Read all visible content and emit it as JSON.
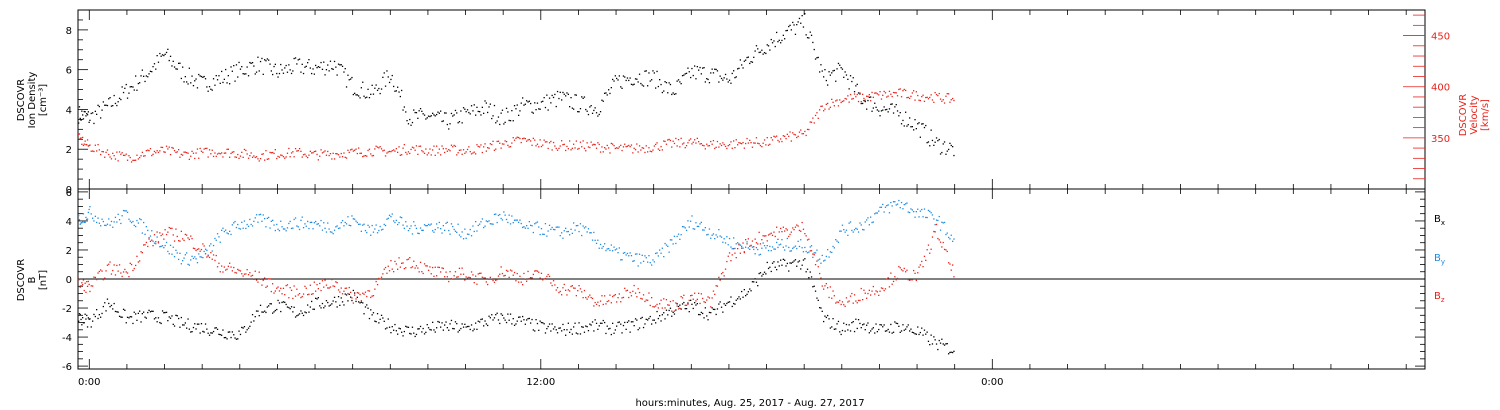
{
  "colors": {
    "black": "#000000",
    "red": "#e8231b",
    "blue": "#1f8be0"
  },
  "xlabel": "hours:minutes, Aug. 25, 2017 - Aug. 27, 2017",
  "x_ticks": [
    "0:00",
    "12:00",
    "0:00"
  ],
  "chart_data": [
    {
      "type": "scatter",
      "title": "",
      "ylabel_left": [
        "DSCOVR",
        "Ion Density",
        "[cm⁻³]"
      ],
      "ylabel_right": [
        "DSCOVR",
        "Velocity",
        "[km/s]"
      ],
      "ylim_left": [
        0,
        9
      ],
      "ylim_right": [
        300,
        475
      ],
      "yticks_left": [
        "0",
        "2",
        "4",
        "6",
        "8"
      ],
      "yticks_right": [
        "350",
        "400",
        "450"
      ],
      "x_hours": {
        "start": -0.3,
        "end": 35.5,
        "data_end": 23.0
      },
      "series": [
        {
          "axis": "left",
          "color": "black",
          "points": [
            [
              -0.3,
              3.8
            ],
            [
              0,
              3.6
            ],
            [
              0.5,
              4.2
            ],
            [
              1,
              5.0
            ],
            [
              1.5,
              5.8
            ],
            [
              2,
              6.8
            ],
            [
              2.5,
              5.8
            ],
            [
              3,
              5.3
            ],
            [
              3.5,
              5.6
            ],
            [
              4,
              6.0
            ],
            [
              4.5,
              6.3
            ],
            [
              5,
              5.9
            ],
            [
              5.5,
              6.2
            ],
            [
              6,
              6.1
            ],
            [
              6.5,
              6.3
            ],
            [
              7,
              5.2
            ],
            [
              7.5,
              4.8
            ],
            [
              8,
              5.8
            ],
            [
              8.5,
              3.6
            ],
            [
              9,
              3.7
            ],
            [
              9.5,
              3.4
            ],
            [
              10,
              3.8
            ],
            [
              10.5,
              4.1
            ],
            [
              11,
              3.6
            ],
            [
              11.5,
              4.2
            ],
            [
              12,
              4.3
            ],
            [
              12.5,
              4.6
            ],
            [
              13,
              4.3
            ],
            [
              13.5,
              4.1
            ],
            [
              14,
              5.4
            ],
            [
              14.5,
              5.7
            ],
            [
              15,
              5.6
            ],
            [
              15.5,
              4.9
            ],
            [
              16,
              5.9
            ],
            [
              16.5,
              5.8
            ],
            [
              17,
              5.5
            ],
            [
              17.5,
              6.6
            ],
            [
              18,
              7.3
            ],
            [
              18.5,
              7.9
            ],
            [
              19,
              8.4
            ],
            [
              19.5,
              5.6
            ],
            [
              20,
              6.0
            ],
            [
              20.5,
              4.6
            ],
            [
              21,
              4.1
            ],
            [
              21.5,
              3.8
            ],
            [
              22,
              3.2
            ],
            [
              22.5,
              2.3
            ],
            [
              23,
              2.0
            ]
          ]
        },
        {
          "axis": "right",
          "color": "red",
          "points": [
            [
              -0.3,
              350
            ],
            [
              0,
              342
            ],
            [
              0.5,
              335
            ],
            [
              1,
              331
            ],
            [
              1.5,
              336
            ],
            [
              2,
              338
            ],
            [
              2.5,
              334
            ],
            [
              3,
              336
            ],
            [
              3.5,
              337
            ],
            [
              4,
              335
            ],
            [
              4.5,
              333
            ],
            [
              5,
              335
            ],
            [
              5.5,
              336
            ],
            [
              6,
              334
            ],
            [
              6.5,
              335
            ],
            [
              7,
              336
            ],
            [
              7.5,
              338
            ],
            [
              8,
              337
            ],
            [
              8.5,
              340
            ],
            [
              9,
              338
            ],
            [
              9.5,
              339
            ],
            [
              10,
              338
            ],
            [
              10.5,
              341
            ],
            [
              11,
              345
            ],
            [
              11.5,
              348
            ],
            [
              12,
              345
            ],
            [
              12.5,
              343
            ],
            [
              13,
              343
            ],
            [
              13.5,
              342
            ],
            [
              14,
              340
            ],
            [
              14.5,
              340
            ],
            [
              15,
              342
            ],
            [
              15.5,
              345
            ],
            [
              16,
              346
            ],
            [
              16.5,
              344
            ],
            [
              17,
              344
            ],
            [
              17.5,
              346
            ],
            [
              18,
              346
            ],
            [
              18.5,
              351
            ],
            [
              19,
              354
            ],
            [
              19.5,
              382
            ],
            [
              20,
              388
            ],
            [
              20.5,
              390
            ],
            [
              21,
              392
            ],
            [
              21.5,
              394
            ],
            [
              22,
              392
            ],
            [
              22.5,
              390
            ],
            [
              23,
              388
            ]
          ]
        }
      ]
    },
    {
      "type": "scatter",
      "title": "",
      "ylabel_left": [
        "DSCOVR",
        "B",
        "[nT]"
      ],
      "ylim": [
        -6.2,
        6.2
      ],
      "yticks": [
        "6",
        "4",
        "2",
        "0",
        "-2",
        "-4",
        "-6"
      ],
      "zero_line": true,
      "legend": [
        "Bx",
        "By",
        "Bz"
      ],
      "x_hours": {
        "start": -0.3,
        "end": 35.5,
        "data_end": 23.0
      },
      "series": [
        {
          "name": "Bx",
          "color": "black",
          "points": [
            [
              -0.3,
              -2.6
            ],
            [
              0,
              -2.9
            ],
            [
              0.5,
              -1.6
            ],
            [
              1,
              -2.7
            ],
            [
              1.5,
              -2.5
            ],
            [
              2,
              -2.6
            ],
            [
              2.5,
              -3.1
            ],
            [
              3,
              -3.3
            ],
            [
              3.5,
              -3.6
            ],
            [
              4,
              -3.8
            ],
            [
              4.5,
              -2.1
            ],
            [
              5,
              -1.8
            ],
            [
              5.5,
              -2.3
            ],
            [
              6,
              -1.7
            ],
            [
              6.5,
              -1.5
            ],
            [
              7,
              -1.1
            ],
            [
              7.5,
              -2.6
            ],
            [
              8,
              -3.2
            ],
            [
              8.5,
              -3.6
            ],
            [
              9,
              -3.4
            ],
            [
              9.5,
              -3.2
            ],
            [
              10,
              -3.4
            ],
            [
              10.5,
              -2.9
            ],
            [
              11,
              -2.6
            ],
            [
              11.5,
              -2.9
            ],
            [
              12,
              -3.3
            ],
            [
              12.5,
              -3.5
            ],
            [
              13,
              -3.3
            ],
            [
              13.5,
              -3.2
            ],
            [
              14,
              -3.4
            ],
            [
              14.5,
              -3.1
            ],
            [
              15,
              -2.7
            ],
            [
              15.5,
              -2.1
            ],
            [
              16,
              -1.8
            ],
            [
              16.5,
              -2.4
            ],
            [
              17,
              -1.5
            ],
            [
              17.5,
              -0.8
            ],
            [
              18,
              0.8
            ],
            [
              18.5,
              1.0
            ],
            [
              19,
              1.2
            ],
            [
              19.5,
              -2.7
            ],
            [
              20,
              -3.4
            ],
            [
              20.5,
              -3.0
            ],
            [
              21,
              -3.5
            ],
            [
              21.5,
              -3.2
            ],
            [
              22,
              -3.6
            ],
            [
              22.5,
              -4.4
            ],
            [
              23,
              -4.9
            ]
          ]
        },
        {
          "name": "By",
          "color": "blue",
          "points": [
            [
              -0.3,
              4.1
            ],
            [
              0,
              4.6
            ],
            [
              0.5,
              3.8
            ],
            [
              1,
              4.5
            ],
            [
              1.5,
              3.4
            ],
            [
              2,
              2.3
            ],
            [
              2.5,
              1.4
            ],
            [
              3,
              1.5
            ],
            [
              3.5,
              3.1
            ],
            [
              4,
              3.8
            ],
            [
              4.5,
              4.1
            ],
            [
              5,
              3.7
            ],
            [
              5.5,
              3.9
            ],
            [
              6,
              3.8
            ],
            [
              6.5,
              3.6
            ],
            [
              7,
              4.1
            ],
            [
              7.5,
              3.3
            ],
            [
              8,
              4.3
            ],
            [
              8.5,
              3.5
            ],
            [
              9,
              3.7
            ],
            [
              9.5,
              3.6
            ],
            [
              10,
              3.2
            ],
            [
              10.5,
              3.9
            ],
            [
              11,
              4.4
            ],
            [
              11.5,
              3.6
            ],
            [
              12,
              3.5
            ],
            [
              12.5,
              3.2
            ],
            [
              13,
              3.6
            ],
            [
              13.5,
              2.6
            ],
            [
              14,
              1.8
            ],
            [
              14.5,
              1.4
            ],
            [
              15,
              1.3
            ],
            [
              15.5,
              2.6
            ],
            [
              16,
              4.0
            ],
            [
              16.5,
              3.3
            ],
            [
              17,
              2.6
            ],
            [
              17.5,
              2.2
            ],
            [
              18,
              2.1
            ],
            [
              18.5,
              2.4
            ],
            [
              19,
              2.3
            ],
            [
              19.5,
              1.4
            ],
            [
              20,
              3.4
            ],
            [
              20.5,
              3.7
            ],
            [
              21,
              4.7
            ],
            [
              21.5,
              5.3
            ],
            [
              22,
              4.6
            ],
            [
              22.5,
              4.2
            ],
            [
              23,
              2.6
            ]
          ]
        },
        {
          "name": "Bz",
          "color": "red",
          "points": [
            [
              -0.3,
              -0.3
            ],
            [
              0,
              -0.5
            ],
            [
              0.5,
              0.8
            ],
            [
              1,
              0.5
            ],
            [
              1.5,
              2.4
            ],
            [
              2,
              3.2
            ],
            [
              2.5,
              3.0
            ],
            [
              3,
              2.1
            ],
            [
              3.5,
              0.9
            ],
            [
              4,
              0.5
            ],
            [
              4.5,
              0.1
            ],
            [
              5,
              -0.7
            ],
            [
              5.5,
              -0.9
            ],
            [
              6,
              -0.6
            ],
            [
              6.5,
              -0.2
            ],
            [
              7,
              -1.2
            ],
            [
              7.5,
              -0.8
            ],
            [
              8,
              0.9
            ],
            [
              8.5,
              1.3
            ],
            [
              9,
              0.6
            ],
            [
              9.5,
              0.3
            ],
            [
              10,
              0.4
            ],
            [
              10.5,
              -0.1
            ],
            [
              11,
              0.6
            ],
            [
              11.5,
              0.1
            ],
            [
              12,
              0.3
            ],
            [
              12.5,
              -0.6
            ],
            [
              13,
              -0.8
            ],
            [
              13.5,
              -1.6
            ],
            [
              14,
              -1.3
            ],
            [
              14.5,
              -0.7
            ],
            [
              15,
              -1.5
            ],
            [
              15.5,
              -1.8
            ],
            [
              16,
              -1.2
            ],
            [
              16.5,
              -1.6
            ],
            [
              17,
              1.6
            ],
            [
              17.5,
              2.5
            ],
            [
              18,
              3.1
            ],
            [
              18.5,
              3.3
            ],
            [
              19,
              3.6
            ],
            [
              19.5,
              -0.5
            ],
            [
              20,
              -1.7
            ],
            [
              20.5,
              -1.0
            ],
            [
              21,
              -0.6
            ],
            [
              21.5,
              0.5
            ],
            [
              22,
              0.2
            ],
            [
              22.5,
              3.4
            ],
            [
              23,
              0.1
            ]
          ]
        }
      ]
    }
  ]
}
